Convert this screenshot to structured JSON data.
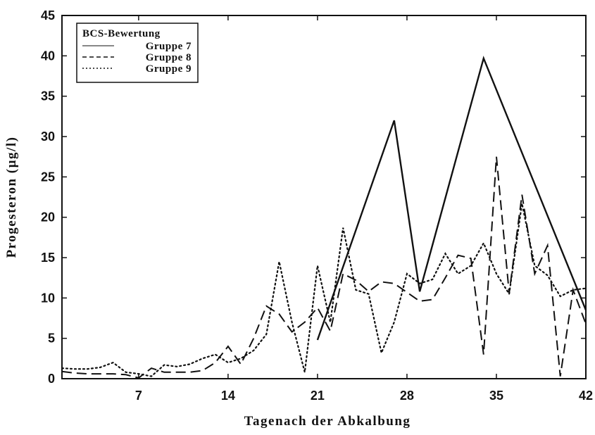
{
  "chart_data": {
    "type": "line",
    "xlabel": "Tagenach der Abkalbung",
    "ylabel": "Progesteron (µg/l)",
    "xlim": [
      1,
      42
    ],
    "ylim": [
      0,
      45
    ],
    "x_ticks": [
      7,
      14,
      21,
      28,
      35,
      42
    ],
    "y_ticks": [
      0,
      5,
      10,
      15,
      20,
      25,
      30,
      35,
      40,
      45
    ],
    "grid": false,
    "legend": {
      "title": "BCS-Bewertung",
      "placement": "top-left"
    },
    "series": [
      {
        "name": "Gruppe 7",
        "line_style": "solid",
        "color": "#111111",
        "x": [
          21,
          27,
          29,
          34,
          42
        ],
        "y": [
          4.8,
          32,
          10.8,
          39.7,
          8.5
        ]
      },
      {
        "name": "Gruppe 8",
        "line_style": "dashed",
        "color": "#111111",
        "x": [
          1,
          2,
          3,
          4,
          5,
          6,
          7,
          8,
          9,
          10,
          11,
          12,
          13,
          14,
          15,
          16,
          17,
          18,
          19,
          20,
          21,
          22,
          23,
          24,
          25,
          26,
          27,
          28,
          29,
          30,
          31,
          32,
          33,
          34,
          35,
          36,
          37,
          38,
          39,
          40,
          41,
          42
        ],
        "y": [
          0.9,
          0.7,
          0.6,
          0.6,
          0.6,
          0.5,
          0.1,
          1.3,
          0.8,
          0.8,
          0.8,
          1.0,
          2.0,
          4.0,
          1.8,
          5.0,
          9.0,
          8.0,
          5.8,
          7.0,
          8.8,
          5.9,
          13.0,
          12.2,
          10.8,
          12.0,
          11.8,
          10.7,
          9.6,
          9.8,
          12.5,
          15.3,
          14.9,
          3.0,
          27.5,
          10.6,
          22.8,
          13.0,
          16.5,
          0.3,
          11.0,
          6.8
        ]
      },
      {
        "name": "Gruppe 9",
        "line_style": "dotted",
        "color": "#111111",
        "x": [
          1,
          2,
          3,
          4,
          5,
          6,
          7,
          8,
          9,
          10,
          11,
          12,
          13,
          14,
          15,
          16,
          17,
          18,
          19,
          20,
          21,
          22,
          23,
          24,
          25,
          26,
          27,
          28,
          29,
          30,
          31,
          32,
          33,
          34,
          35,
          36,
          37,
          38,
          39,
          40,
          41,
          42
        ],
        "y": [
          1.3,
          1.2,
          1.2,
          1.4,
          2.0,
          0.8,
          0.6,
          0.3,
          1.7,
          1.5,
          1.8,
          2.5,
          3.0,
          2.0,
          2.5,
          3.5,
          5.5,
          14.5,
          7.0,
          0.8,
          14.0,
          7.0,
          18.7,
          11.0,
          10.5,
          3.2,
          7.0,
          13.0,
          11.8,
          12.3,
          15.5,
          13.0,
          14.0,
          16.8,
          13.0,
          10.5,
          21.7,
          14.0,
          12.8,
          10.2,
          11.0,
          11.2
        ]
      }
    ]
  }
}
